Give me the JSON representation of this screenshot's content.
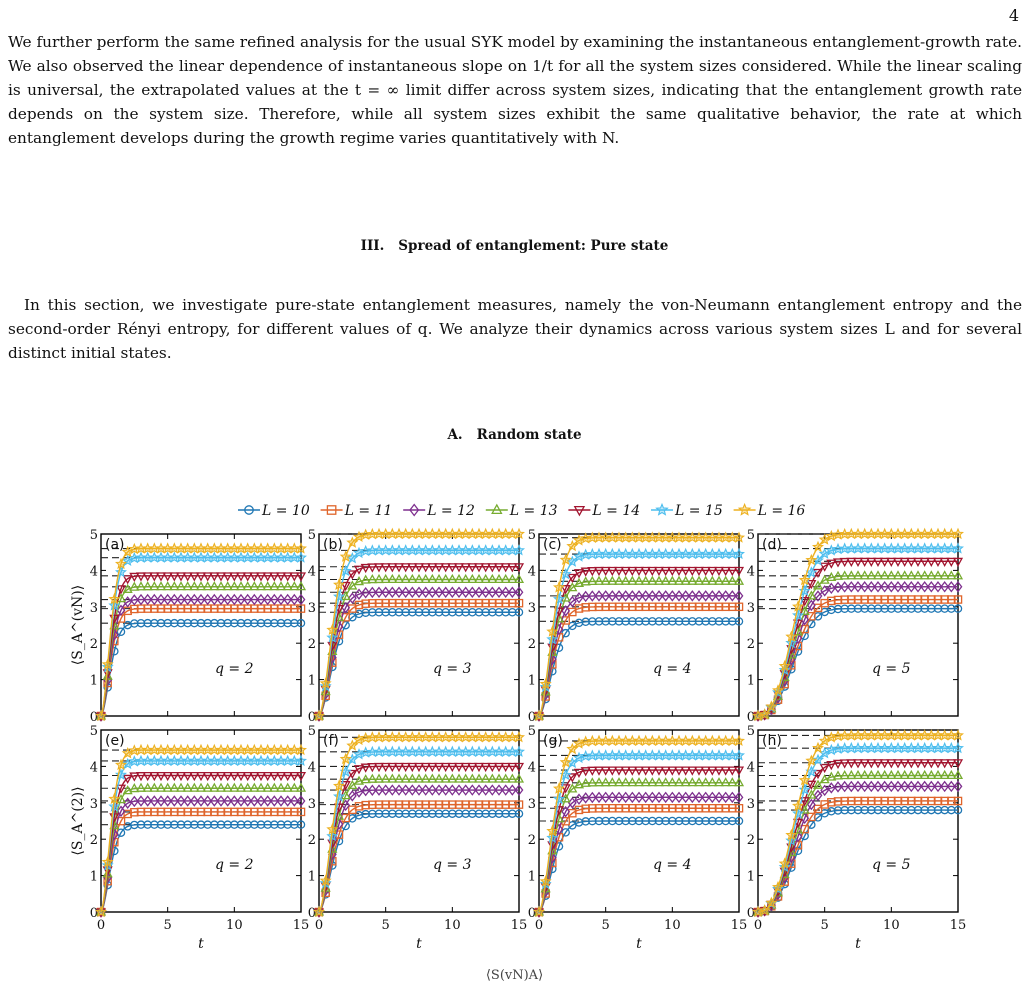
{
  "page_number": "4",
  "paragraph_1": "We further perform the same refined analysis for the usual SYK model by examining the instantaneous entanglement-growth rate. We also observed the linear dependence of instantaneous slope on 1/t for all the system sizes considered. While the linear scaling is universal, the extrapolated values at the t = ∞ limit differ across system sizes, indicating that the entanglement growth rate depends on the system size. Therefore, while all system sizes exhibit the same qualitative behavior, the rate at which entanglement develops during the growth regime varies quantitatively with N.",
  "section": {
    "number": "III.",
    "title": "Spread of entanglement: Pure state"
  },
  "paragraph_2": "In this section, we investigate pure-state entanglement measures, namely the von-Neumann entanglement entropy and the second-order Rényi entropy, for different values of q. We analyze their dynamics across various system sizes L and for several distinct initial states.",
  "subsection": {
    "number": "A.",
    "title": "Random state"
  },
  "caption_fragment": "⟨S(vN)A⟩",
  "chart_data": {
    "type": "line",
    "legend": [
      {
        "label": "L = 10",
        "color": "#1f77b4",
        "marker": "circle"
      },
      {
        "label": "L = 11",
        "color": "#e0652b",
        "marker": "square"
      },
      {
        "label": "L = 12",
        "color": "#7e2f8e",
        "marker": "diamond"
      },
      {
        "label": "L = 13",
        "color": "#77ac30",
        "marker": "triangle-up"
      },
      {
        "label": "L = 14",
        "color": "#a2142f",
        "marker": "triangle-down"
      },
      {
        "label": "L = 15",
        "color": "#4dbeee",
        "marker": "star"
      },
      {
        "label": "L = 16",
        "color": "#edb120",
        "marker": "star"
      }
    ],
    "xlabel": "t",
    "xlim": [
      0,
      15
    ],
    "ylim": [
      0,
      5
    ],
    "x_ticks": [
      "0",
      "5",
      "10",
      "15"
    ],
    "y_ticks": [
      "0",
      "1",
      "2",
      "3",
      "4",
      "5"
    ],
    "ylabel_row1": "⟨S_A^(vN)⟩",
    "ylabel_row2": "⟨S_A^(2)⟩",
    "panels": [
      {
        "label": "(a)",
        "q_label": "q = 2",
        "q": 2,
        "row": 1,
        "saturation": [
          2.55,
          2.95,
          3.2,
          3.55,
          3.85,
          4.35,
          4.6
        ]
      },
      {
        "label": "(b)",
        "q_label": "q = 3",
        "q": 3,
        "row": 1,
        "saturation": [
          2.85,
          3.1,
          3.4,
          3.75,
          4.1,
          4.55,
          5.0
        ]
      },
      {
        "label": "(c)",
        "q_label": "q = 4",
        "q": 4,
        "row": 1,
        "saturation": [
          2.6,
          3.0,
          3.3,
          3.7,
          4.0,
          4.45,
          4.9
        ]
      },
      {
        "label": "(d)",
        "q_label": "q = 5",
        "q": 5,
        "row": 1,
        "saturation": [
          2.95,
          3.2,
          3.55,
          3.85,
          4.25,
          4.6,
          5.0
        ]
      },
      {
        "label": "(e)",
        "q_label": "q = 2",
        "q": 2,
        "row": 2,
        "saturation": [
          2.4,
          2.75,
          3.05,
          3.4,
          3.75,
          4.15,
          4.45
        ]
      },
      {
        "label": "(f)",
        "q_label": "q = 3",
        "q": 3,
        "row": 2,
        "saturation": [
          2.7,
          2.95,
          3.35,
          3.65,
          4.0,
          4.4,
          4.8
        ]
      },
      {
        "label": "(g)",
        "q_label": "q = 4",
        "q": 4,
        "row": 2,
        "saturation": [
          2.5,
          2.85,
          3.15,
          3.55,
          3.9,
          4.3,
          4.7
        ]
      },
      {
        "label": "(h)",
        "q_label": "q = 5",
        "q": 5,
        "row": 2,
        "saturation": [
          2.8,
          3.05,
          3.45,
          3.75,
          4.1,
          4.5,
          4.85
        ]
      }
    ]
  }
}
